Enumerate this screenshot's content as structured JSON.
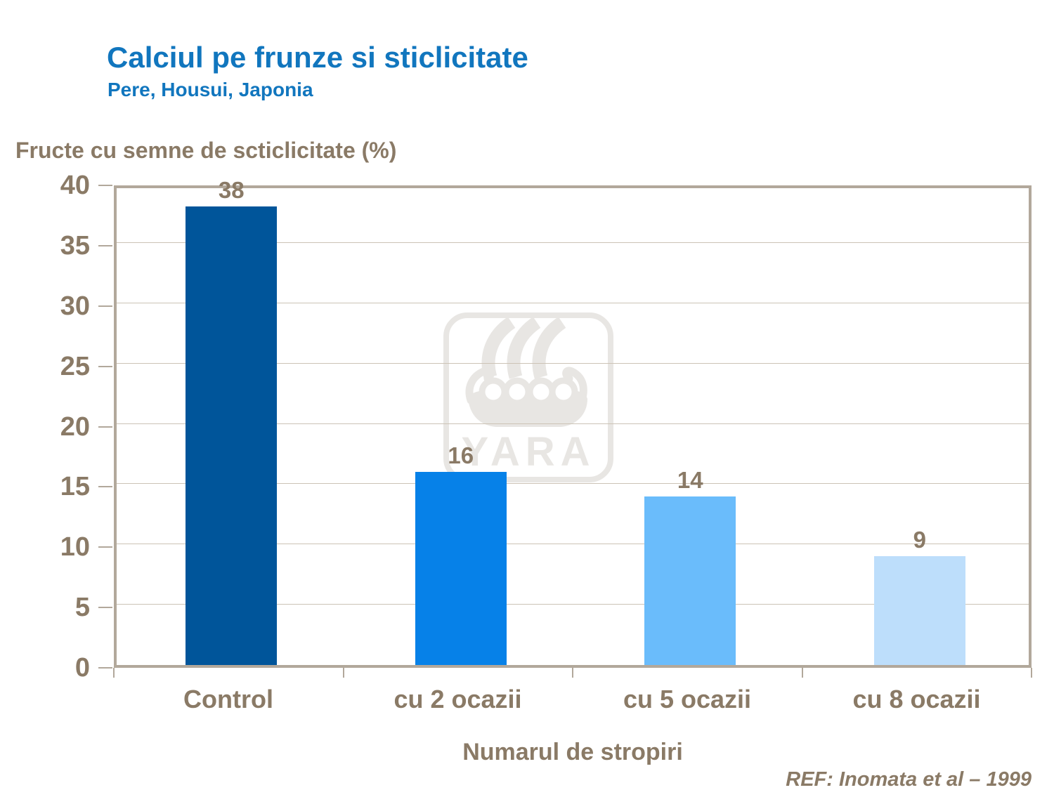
{
  "header": {
    "title": "Calciul pe frunze si sticlicitate",
    "subtitle": "Pere, Housui, Japonia"
  },
  "footer": {
    "reference": "REF: Inomata et al – 1999"
  },
  "watermark": {
    "name": "yara-logo",
    "text": "YARA",
    "color": "#E8E6E3"
  },
  "colors": {
    "title_blue": "#1176BE",
    "label_brown": "#8A7A66",
    "frame": "#B2A89B",
    "gridline": "#CCC3B6"
  },
  "chart_data": {
    "type": "bar",
    "title": "Calciul pe frunze si sticlicitate",
    "subtitle": "Pere, Housui, Japonia",
    "categories": [
      "Control",
      "cu 2 ocazii",
      "cu 5 ocazii",
      "cu 8 ocazii"
    ],
    "values": [
      38,
      16,
      14,
      9
    ],
    "data_labels": [
      "38",
      "16",
      "14",
      "9"
    ],
    "bar_colors": [
      "#00559A",
      "#0681E8",
      "#6ABCFB",
      "#BDDEFB"
    ],
    "ylabel": "Fructe cu semne de scticlicitate (%)",
    "xlabel": "Numarul de stropiri",
    "ylim": [
      0,
      40
    ],
    "ytick_step": 5,
    "ytick_labels": [
      "0",
      "5",
      "10",
      "15",
      "20",
      "25",
      "30",
      "35",
      "40"
    ],
    "grid": true,
    "legend": "none"
  }
}
